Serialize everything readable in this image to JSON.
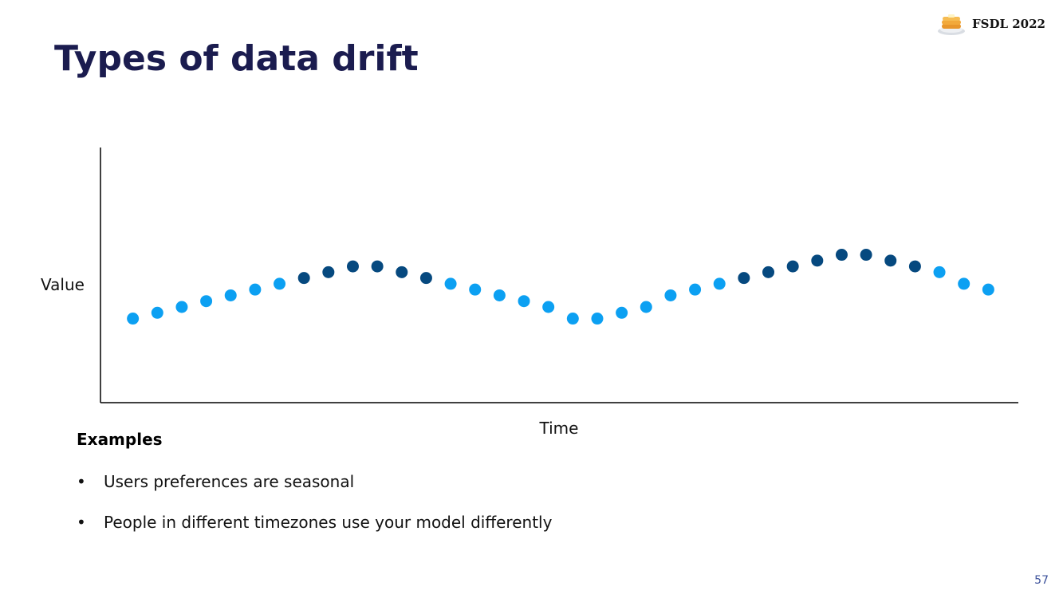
{
  "header": {
    "logo_text": "FSDL 2022",
    "logo_icon": "pancake-stack-icon"
  },
  "slide": {
    "title": "Types of data drift",
    "page_number": "57"
  },
  "colors": {
    "title": "#1b1c4f",
    "point_light": "#0ca0f2",
    "point_dark": "#06497f",
    "axis": "#000000"
  },
  "chart_data": {
    "type": "scatter",
    "title": "",
    "xlabel": "Time",
    "ylabel": "Value",
    "grid": false,
    "legend": "none",
    "x": [
      1,
      2,
      3,
      4,
      5,
      6,
      7,
      8,
      9,
      10,
      11,
      12,
      13,
      14,
      15,
      16,
      17,
      18,
      19,
      20,
      21,
      22,
      23,
      24,
      25,
      26,
      27,
      28,
      29,
      30,
      31,
      32,
      33,
      34,
      35,
      36
    ],
    "y": [
      -15,
      -13,
      -11,
      -9,
      -7,
      -5,
      -3,
      -1,
      1,
      3,
      3,
      1,
      -1,
      -3,
      -5,
      -7,
      -9,
      -11,
      -15,
      -15,
      -13,
      -11,
      -7,
      -5,
      -3,
      -1,
      1,
      3,
      5,
      7,
      7,
      5,
      3,
      1,
      -3,
      -5
    ],
    "highlight": [
      false,
      false,
      false,
      false,
      false,
      false,
      false,
      true,
      true,
      true,
      true,
      true,
      true,
      false,
      false,
      false,
      false,
      false,
      false,
      false,
      false,
      false,
      false,
      false,
      false,
      true,
      true,
      true,
      true,
      true,
      true,
      true,
      true,
      false,
      false,
      false
    ],
    "xlim": [
      0,
      37
    ],
    "ylim": [
      -44,
      44
    ]
  },
  "examples": {
    "heading": "Examples",
    "bullet": "•",
    "items": [
      "Users preferences are seasonal",
      "People in different timezones use your model differently"
    ]
  }
}
